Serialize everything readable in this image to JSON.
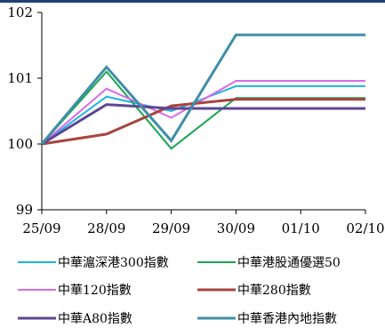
{
  "chart_data": {
    "type": "line",
    "categories": [
      "25/09",
      "28/09",
      "29/09",
      "30/09",
      "01/10",
      "02/10"
    ],
    "ylim": [
      99,
      102
    ],
    "yticks": [
      99,
      100,
      101,
      102
    ],
    "y_tick_labels": [
      "99",
      "100",
      "101",
      "102"
    ],
    "grid": false,
    "legend_position": "bottom",
    "series": [
      {
        "name": "中華滬深港300指數",
        "color": "#1fb3e6",
        "width": 2,
        "values": [
          100,
          100.72,
          100.5,
          100.88,
          100.88,
          100.88
        ]
      },
      {
        "name": "中華港股通優選50",
        "color": "#19a651",
        "width": 2,
        "values": [
          100,
          101.1,
          99.93,
          100.7,
          100.7,
          100.7
        ]
      },
      {
        "name": "中華120指數",
        "color": "#d96ae8",
        "width": 2,
        "values": [
          100,
          100.84,
          100.4,
          100.96,
          100.96,
          100.96
        ]
      },
      {
        "name": "中華280指數",
        "color": "#a8443f",
        "width": 3,
        "values": [
          100,
          100.15,
          100.58,
          100.68,
          100.68,
          100.68
        ]
      },
      {
        "name": "中華A80指數",
        "color": "#5e4691",
        "width": 3,
        "values": [
          100,
          100.6,
          100.54,
          100.54,
          100.54,
          100.54
        ]
      },
      {
        "name": "中華香港內地指數",
        "color": "#3f8fa6",
        "width": 3,
        "values": [
          100,
          101.17,
          100.05,
          101.66,
          101.66,
          101.66
        ]
      }
    ]
  }
}
